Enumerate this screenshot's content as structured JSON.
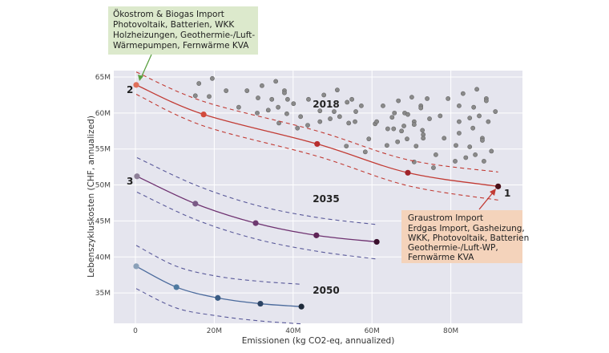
{
  "chart_data": {
    "type": "scatter",
    "xlabel": "Emissionen (kg CO2-eq, annualized)",
    "ylabel": "Lebenszykluskosten (CHF, annualized)",
    "xlim": [
      -5,
      98
    ],
    "ylim": [
      30.5,
      66
    ],
    "x_unit": "M",
    "y_unit": "M",
    "grid": true,
    "x_ticks": [
      {
        "value": 0,
        "label": "0"
      },
      {
        "value": 20,
        "label": "20M"
      },
      {
        "value": 40,
        "label": "40M"
      },
      {
        "value": 60,
        "label": "60M"
      },
      {
        "value": 80,
        "label": "80M"
      }
    ],
    "y_ticks": [
      {
        "value": 35,
        "label": "35M"
      },
      {
        "value": 40,
        "label": "40M"
      },
      {
        "value": 45,
        "label": "45M"
      },
      {
        "value": 50,
        "label": "50M"
      },
      {
        "value": 55,
        "label": "55M"
      },
      {
        "value": 60,
        "label": "60M"
      },
      {
        "value": 65,
        "label": "65M"
      }
    ],
    "series": [
      {
        "label": "2018",
        "line_color": "#c23b34",
        "x": [
          0.2,
          17.3,
          46.1,
          69.1,
          92.0
        ],
        "y": [
          63.9,
          59.8,
          55.7,
          51.7,
          49.8
        ],
        "upper": [
          65.7,
          61.6,
          57.5,
          53.5,
          51.8
        ],
        "lower": [
          62.6,
          58.2,
          54.0,
          49.9,
          47.9
        ],
        "point_colors": [
          "#e0705a",
          "#d24a3c",
          "#b82e2e",
          "#a02228",
          "#4a1018"
        ]
      },
      {
        "label": "2035",
        "line_color": "#6e3170",
        "x": [
          0.4,
          15.2,
          30.5,
          45.9,
          61.2
        ],
        "y": [
          51.2,
          47.4,
          44.7,
          43.0,
          42.1
        ],
        "upper": [
          53.8,
          50.0,
          47.2,
          45.5,
          44.5
        ],
        "lower": [
          49.0,
          45.2,
          42.5,
          40.8,
          39.7
        ],
        "point_colors": [
          "#8e8098",
          "#7a5a86",
          "#6e3a70",
          "#5e2456",
          "#3a0f2c"
        ]
      },
      {
        "label": "2050",
        "line_color": "#4a6a9c",
        "x": [
          0.2,
          10.4,
          20.9,
          31.7,
          42.1
        ],
        "y": [
          38.7,
          35.8,
          34.3,
          33.5,
          33.1
        ],
        "upper": [
          41.6,
          38.7,
          37.3,
          36.6,
          36.2
        ],
        "lower": [
          35.6,
          32.9,
          31.8,
          31.1,
          30.7
        ],
        "point_colors": [
          "#8aa0b8",
          "#4f7aa0",
          "#3a5c84",
          "#2c4464",
          "#1e2a3a"
        ]
      }
    ],
    "point_labels": [
      {
        "text": "1",
        "x": 92.0,
        "y": 49.8
      },
      {
        "text": "2",
        "x": 0.2,
        "y": 63.9
      },
      {
        "text": "3",
        "x": 0.4,
        "y": 51.2
      }
    ],
    "scatter_2018": {
      "color": "#8a8a8a",
      "points": [
        [
          16.1,
          64.1
        ],
        [
          19.5,
          64.8
        ],
        [
          15.2,
          62.4
        ],
        [
          18.7,
          62.3
        ],
        [
          23.0,
          63.1
        ],
        [
          28.3,
          63.1
        ],
        [
          32.1,
          63.8
        ],
        [
          35.6,
          64.4
        ],
        [
          37.8,
          63.1
        ],
        [
          37.8,
          62.8
        ],
        [
          31.1,
          62.1
        ],
        [
          34.6,
          61.9
        ],
        [
          38.6,
          61.9
        ],
        [
          40.1,
          61.3
        ],
        [
          43.9,
          61.9
        ],
        [
          47.8,
          62.5
        ],
        [
          51.2,
          63.2
        ],
        [
          26.2,
          60.8
        ],
        [
          30.9,
          60.0
        ],
        [
          33.7,
          60.4
        ],
        [
          36.2,
          60.8
        ],
        [
          38.4,
          59.9
        ],
        [
          36.4,
          58.6
        ],
        [
          41.9,
          59.5
        ],
        [
          41.1,
          57.9
        ],
        [
          43.7,
          58.3
        ],
        [
          46.8,
          60.3
        ],
        [
          50.4,
          60.2
        ],
        [
          49.4,
          59.2
        ],
        [
          51.8,
          59.5
        ],
        [
          46.8,
          58.8
        ],
        [
          53.7,
          61.5
        ],
        [
          54.9,
          61.9
        ],
        [
          57.3,
          61.0
        ],
        [
          55.9,
          60.2
        ],
        [
          54.1,
          58.6
        ],
        [
          55.7,
          58.8
        ],
        [
          59.2,
          56.4
        ],
        [
          53.5,
          55.4
        ],
        [
          58.3,
          54.6
        ],
        [
          62.8,
          61.0
        ],
        [
          66.7,
          61.7
        ],
        [
          70.1,
          62.2
        ],
        [
          74.0,
          62.0
        ],
        [
          79.3,
          62.0
        ],
        [
          83.1,
          62.7
        ],
        [
          86.6,
          63.3
        ],
        [
          89.0,
          62.0
        ],
        [
          89.0,
          61.7
        ],
        [
          82.1,
          61.0
        ],
        [
          85.8,
          60.8
        ],
        [
          91.3,
          60.2
        ],
        [
          65.7,
          60.0
        ],
        [
          65.1,
          59.4
        ],
        [
          68.3,
          60.0
        ],
        [
          69.1,
          59.8
        ],
        [
          72.4,
          61.0
        ],
        [
          72.4,
          60.7
        ],
        [
          74.6,
          59.2
        ],
        [
          77.3,
          59.6
        ],
        [
          60.8,
          58.5
        ],
        [
          61.2,
          58.8
        ],
        [
          70.7,
          58.8
        ],
        [
          70.7,
          58.4
        ],
        [
          68.1,
          58.2
        ],
        [
          64.0,
          57.8
        ],
        [
          65.5,
          57.8
        ],
        [
          67.5,
          57.5
        ],
        [
          72.8,
          57.6
        ],
        [
          73.0,
          57.0
        ],
        [
          73.0,
          56.5
        ],
        [
          68.9,
          56.4
        ],
        [
          66.5,
          56.0
        ],
        [
          63.8,
          55.5
        ],
        [
          71.2,
          55.4
        ],
        [
          78.3,
          56.5
        ],
        [
          82.1,
          58.8
        ],
        [
          84.8,
          59.3
        ],
        [
          87.2,
          59.6
        ],
        [
          89.5,
          58.8
        ],
        [
          85.6,
          57.9
        ],
        [
          82.1,
          57.2
        ],
        [
          88.0,
          56.5
        ],
        [
          88.0,
          56.2
        ],
        [
          81.3,
          55.5
        ],
        [
          84.8,
          55.3
        ],
        [
          90.3,
          54.7
        ],
        [
          86.2,
          54.2
        ],
        [
          83.8,
          53.8
        ],
        [
          81.1,
          53.3
        ],
        [
          88.4,
          53.3
        ],
        [
          76.2,
          54.2
        ],
        [
          70.7,
          53.2
        ],
        [
          75.6,
          52.4
        ]
      ]
    },
    "annotations": [
      {
        "lines": [
          "Ökostrom & Biogas Import",
          "Photovoltaik, Batterien, WKK",
          "Holzheizungen, Geothermie-/Luft-",
          "Wärmepumpen, Fernwärme KVA"
        ],
        "bg": "#dce9cc",
        "arrow_color": "#5aa040",
        "target": "2"
      },
      {
        "lines": [
          "Graustrom Import",
          "Erdgas Import, Gasheizung,",
          "WKK, Photovoltaik, Batterien",
          "Geothermie-/Luft-WP,",
          "Fernwärme KVA"
        ],
        "bg": "#f4d3bb",
        "arrow_color": "#c23b34",
        "target": "1"
      }
    ],
    "plot_bg": "#e5e5ee"
  }
}
